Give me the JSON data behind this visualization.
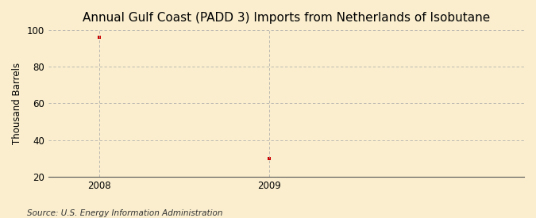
{
  "title": "Annual Gulf Coast (PADD 3) Imports from Netherlands of Isobutane",
  "ylabel": "Thousand Barrels",
  "source": "Source: U.S. Energy Information Administration",
  "x_data": [
    2008,
    2009
  ],
  "y_data": [
    96,
    30
  ],
  "marker_color": "#cc0000",
  "ylim": [
    20,
    100
  ],
  "yticks": [
    20,
    40,
    60,
    80,
    100
  ],
  "xlim": [
    2007.7,
    2010.5
  ],
  "xticks": [
    2008,
    2009
  ],
  "background_color": "#faeece",
  "plot_bg_color": "#faeece",
  "grid_color": "#aaaaaa",
  "title_fontsize": 11,
  "label_fontsize": 8.5,
  "tick_fontsize": 8.5,
  "source_fontsize": 7.5
}
